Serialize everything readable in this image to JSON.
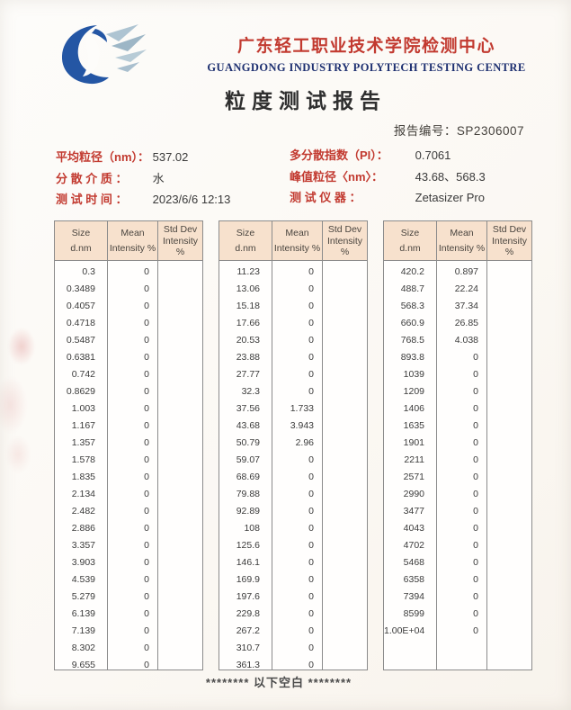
{
  "header": {
    "logo": "dove-swoosh-logo",
    "org_cn": "广东轻工职业技术学院检测中心",
    "org_en": "GUANGDONG INDUSTRY POLYTECH TESTING CENTRE",
    "doc_title": "粒度测试报告",
    "report_no_label": "报告编号：",
    "report_no": "SP2306007"
  },
  "colors": {
    "accent_red": "#c23a30",
    "navy_blue": "#1d2f70",
    "table_header_fill": "#f7e1cd",
    "logo_blue": "#2456a4",
    "logo_gray_blue": "#a9bfce"
  },
  "meta": {
    "left": [
      {
        "label": "平均粒径（nm）：",
        "value": "537.02"
      },
      {
        "label": "分 散 介 质 ：",
        "value": "水"
      },
      {
        "label": "测 试 时 间 ：",
        "value": "2023/6/6  12:13"
      }
    ],
    "right": [
      {
        "label": "多分散指数（PI）：",
        "value": "0.7061"
      },
      {
        "label": "峰值粒径〈nm〉：",
        "value": "43.68、568.3"
      },
      {
        "label": "测 试 仪 器 ：",
        "value": "Zetasizer Pro"
      }
    ]
  },
  "table_headers": {
    "size_l1": "Size",
    "size_l2": "d.nm",
    "mean_l1": "Mean",
    "mean_l2": "Intensity %",
    "std_l1": "Std Dev",
    "std_l2": "Intensity %"
  },
  "tables": {
    "t1": [
      [
        "0.3",
        "0"
      ],
      [
        "0.3489",
        "0"
      ],
      [
        "0.4057",
        "0"
      ],
      [
        "0.4718",
        "0"
      ],
      [
        "0.5487",
        "0"
      ],
      [
        "0.6381",
        "0"
      ],
      [
        "0.742",
        "0"
      ],
      [
        "0.8629",
        "0"
      ],
      [
        "1.003",
        "0"
      ],
      [
        "1.167",
        "0"
      ],
      [
        "1.357",
        "0"
      ],
      [
        "1.578",
        "0"
      ],
      [
        "1.835",
        "0"
      ],
      [
        "2.134",
        "0"
      ],
      [
        "2.482",
        "0"
      ],
      [
        "2.886",
        "0"
      ],
      [
        "3.357",
        "0"
      ],
      [
        "3.903",
        "0"
      ],
      [
        "4.539",
        "0"
      ],
      [
        "5.279",
        "0"
      ],
      [
        "6.139",
        "0"
      ],
      [
        "7.139",
        "0"
      ],
      [
        "8.302",
        "0"
      ],
      [
        "9.655",
        "0"
      ]
    ],
    "t2": [
      [
        "11.23",
        "0"
      ],
      [
        "13.06",
        "0"
      ],
      [
        "15.18",
        "0"
      ],
      [
        "17.66",
        "0"
      ],
      [
        "20.53",
        "0"
      ],
      [
        "23.88",
        "0"
      ],
      [
        "27.77",
        "0"
      ],
      [
        "32.3",
        "0"
      ],
      [
        "37.56",
        "1.733"
      ],
      [
        "43.68",
        "3.943"
      ],
      [
        "50.79",
        "2.96"
      ],
      [
        "59.07",
        "0"
      ],
      [
        "68.69",
        "0"
      ],
      [
        "79.88",
        "0"
      ],
      [
        "92.89",
        "0"
      ],
      [
        "108",
        "0"
      ],
      [
        "125.6",
        "0"
      ],
      [
        "146.1",
        "0"
      ],
      [
        "169.9",
        "0"
      ],
      [
        "197.6",
        "0"
      ],
      [
        "229.8",
        "0"
      ],
      [
        "267.2",
        "0"
      ],
      [
        "310.7",
        "0"
      ],
      [
        "361.3",
        "0"
      ]
    ],
    "t3": [
      [
        "420.2",
        "0.897"
      ],
      [
        "488.7",
        "22.24"
      ],
      [
        "568.3",
        "37.34"
      ],
      [
        "660.9",
        "26.85"
      ],
      [
        "768.5",
        "4.038"
      ],
      [
        "893.8",
        "0"
      ],
      [
        "1039",
        "0"
      ],
      [
        "1209",
        "0"
      ],
      [
        "1406",
        "0"
      ],
      [
        "1635",
        "0"
      ],
      [
        "1901",
        "0"
      ],
      [
        "2211",
        "0"
      ],
      [
        "2571",
        "0"
      ],
      [
        "2990",
        "0"
      ],
      [
        "3477",
        "0"
      ],
      [
        "4043",
        "0"
      ],
      [
        "4702",
        "0"
      ],
      [
        "5468",
        "0"
      ],
      [
        "6358",
        "0"
      ],
      [
        "7394",
        "0"
      ],
      [
        "8599",
        "0"
      ],
      [
        "1.00E+04",
        "0"
      ]
    ]
  },
  "footer": {
    "blank_note": "********  以下空白  ********"
  }
}
